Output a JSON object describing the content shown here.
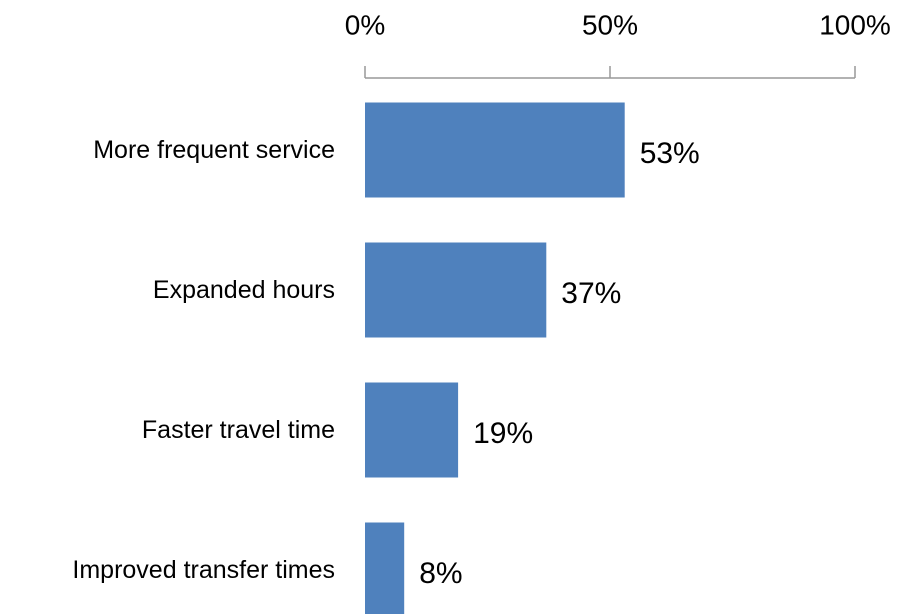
{
  "chart_data": {
    "type": "bar",
    "orientation": "horizontal",
    "categories": [
      "More frequent service",
      "Expanded hours",
      "Faster travel time",
      "Improved transfer times"
    ],
    "values": [
      53,
      37,
      19,
      8
    ],
    "value_labels": [
      "53%",
      "37%",
      "19%",
      "8%"
    ],
    "color": "#4f81bd",
    "xlim": [
      0,
      100
    ],
    "xticks": [
      {
        "value": 0,
        "label": "0%"
      },
      {
        "value": 50,
        "label": "50%"
      },
      {
        "value": 100,
        "label": "100%"
      }
    ]
  }
}
